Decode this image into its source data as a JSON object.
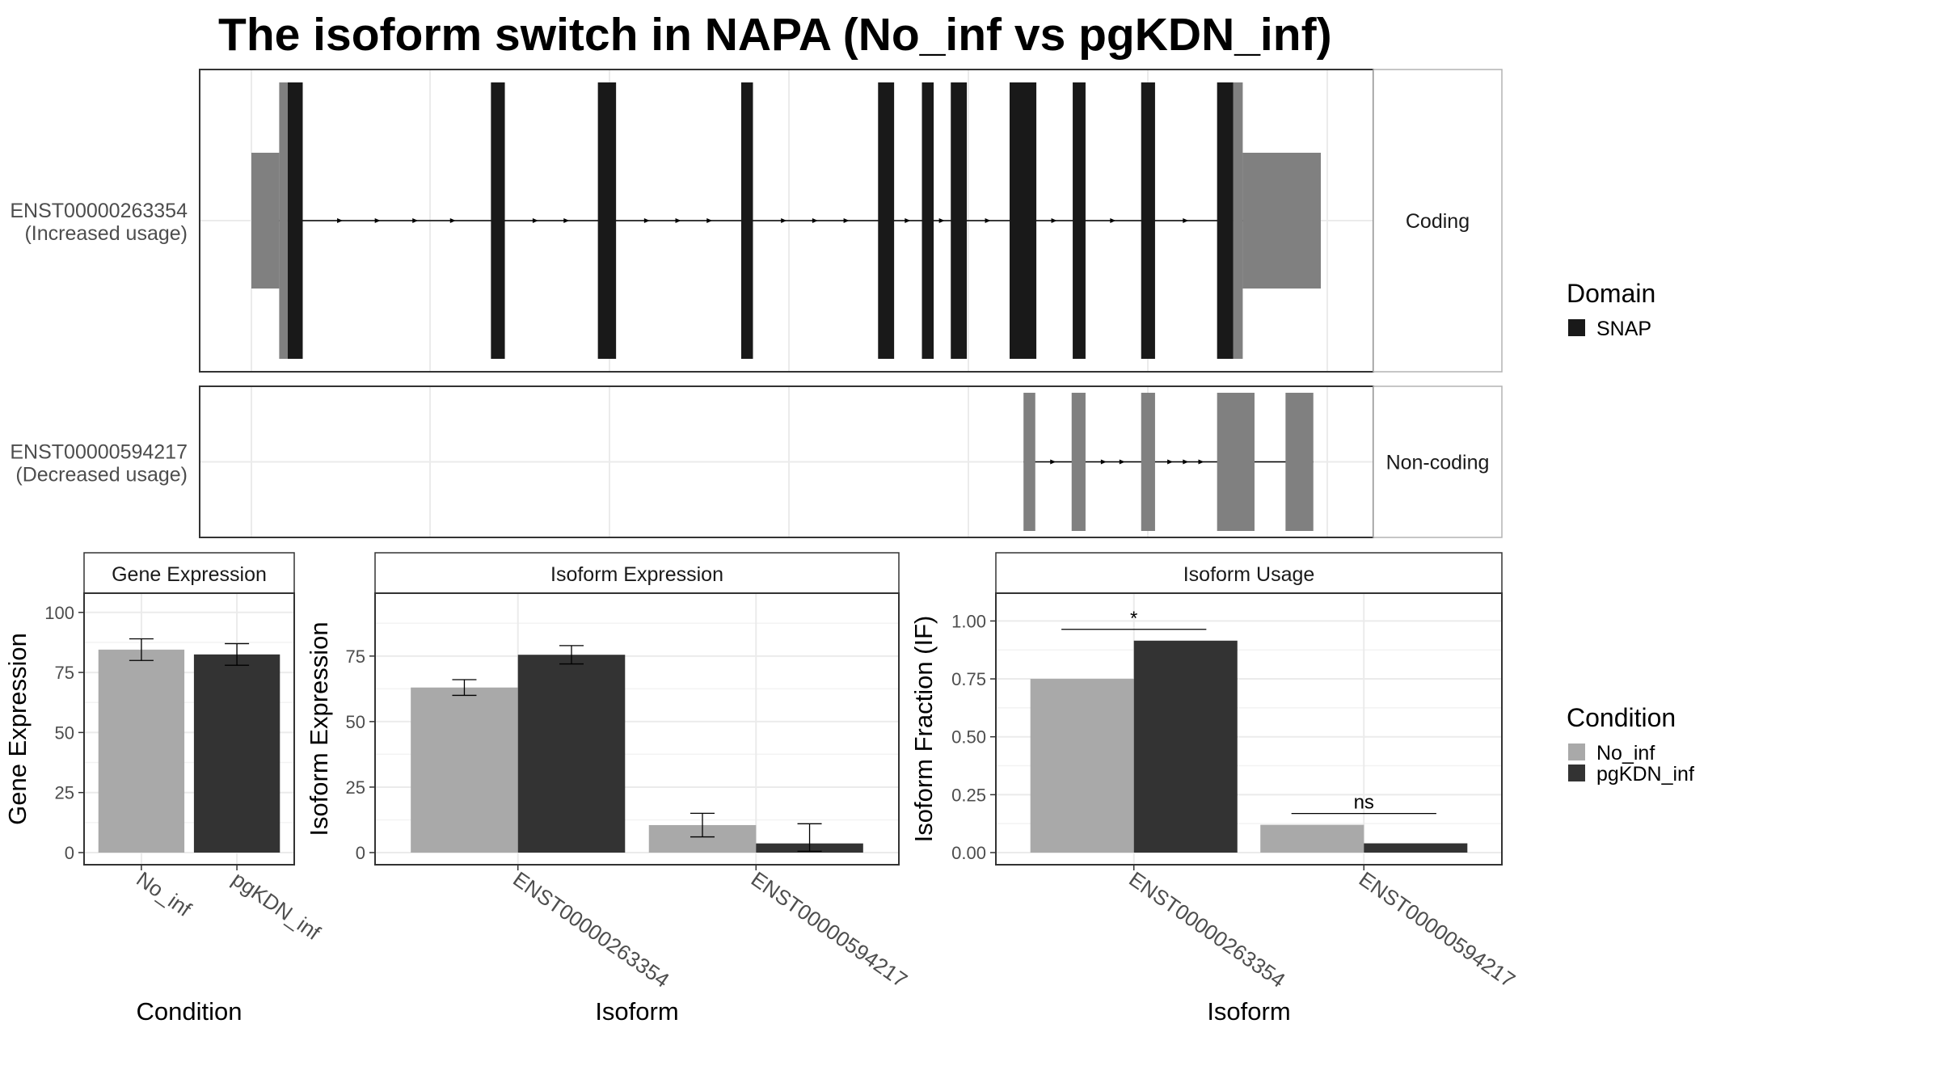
{
  "title": "The isoform switch in NAPA (No_inf vs pgKDN_inf)",
  "colors": {
    "no_inf": "#a9a9a9",
    "pgkdn_inf": "#333333",
    "domain_snap": "#191919",
    "utr": "#808080",
    "noncoding_exon": "#808080",
    "grid": "#ebebeb",
    "strip_bg": "#ffffff",
    "panel_border": "#333333"
  },
  "transcripts": [
    {
      "id": "ENST00000263354",
      "usage": "(Increased usage)",
      "type": "Coding",
      "utr_segments": [
        [
          0.0,
          0.026
        ],
        [
          0.026,
          0.034
        ],
        [
          0.918,
          0.927
        ],
        [
          0.927,
          1.0
        ]
      ],
      "domain_segments": [
        [
          0.034,
          0.048
        ],
        [
          0.224,
          0.237
        ],
        [
          0.324,
          0.341
        ],
        [
          0.458,
          0.469
        ],
        [
          0.586,
          0.601
        ],
        [
          0.627,
          0.638
        ],
        [
          0.654,
          0.669
        ],
        [
          0.709,
          0.734
        ],
        [
          0.768,
          0.78
        ],
        [
          0.832,
          0.845
        ],
        [
          0.903,
          0.918
        ]
      ]
    },
    {
      "id": "ENST00000594217",
      "usage": "(Decreased usage)",
      "type": "Non-coding",
      "exons": [
        [
          0.722,
          0.733
        ],
        [
          0.767,
          0.78
        ],
        [
          0.832,
          0.845
        ],
        [
          0.903,
          0.938
        ],
        [
          0.967,
          0.993
        ]
      ]
    }
  ],
  "legend_domain": {
    "title": "Domain",
    "items": [
      "SNAP"
    ]
  },
  "legend_condition": {
    "title": "Condition",
    "items": [
      "No_inf",
      "pgKDN_inf"
    ]
  },
  "chart_data": [
    {
      "type": "bar",
      "title": "Gene Expression",
      "xlabel": "Condition",
      "ylabel": "Gene Expression",
      "categories": [
        "No_inf",
        "pgKDN_inf"
      ],
      "values": [
        84.5,
        82.5
      ],
      "errors": [
        [
          80,
          89
        ],
        [
          78,
          87
        ]
      ],
      "ylim": [
        0,
        108
      ],
      "yticks": [
        0,
        25,
        50,
        75,
        100
      ]
    },
    {
      "type": "bar",
      "title": "Isoform Expression",
      "xlabel": "Isoform",
      "ylabel": "Isoform Expression",
      "categories": [
        "ENST00000263354",
        "ENST00000594217"
      ],
      "series": [
        {
          "name": "No_inf",
          "values": [
            63,
            10.5
          ],
          "errors": [
            [
              60,
              66
            ],
            [
              6,
              15
            ]
          ]
        },
        {
          "name": "pgKDN_inf",
          "values": [
            75.5,
            3.5
          ],
          "errors": [
            [
              72,
              79
            ],
            [
              0.5,
              11
            ]
          ]
        }
      ],
      "ylim": [
        0,
        99
      ],
      "yticks": [
        0,
        25,
        50,
        75
      ]
    },
    {
      "type": "bar",
      "title": "Isoform Usage",
      "xlabel": "Isoform",
      "ylabel": "Isoform Fraction (IF)",
      "categories": [
        "ENST00000263354",
        "ENST00000594217"
      ],
      "series": [
        {
          "name": "No_inf",
          "values": [
            0.75,
            0.12
          ]
        },
        {
          "name": "pgKDN_inf",
          "values": [
            0.915,
            0.04
          ]
        }
      ],
      "significance": [
        "*",
        "ns"
      ],
      "ylim": [
        0,
        1.12
      ],
      "yticks": [
        0.0,
        0.25,
        0.5,
        0.75,
        1.0
      ],
      "ytick_labels": [
        "0.00",
        "0.25",
        "0.50",
        "0.75",
        "1.00"
      ]
    }
  ]
}
